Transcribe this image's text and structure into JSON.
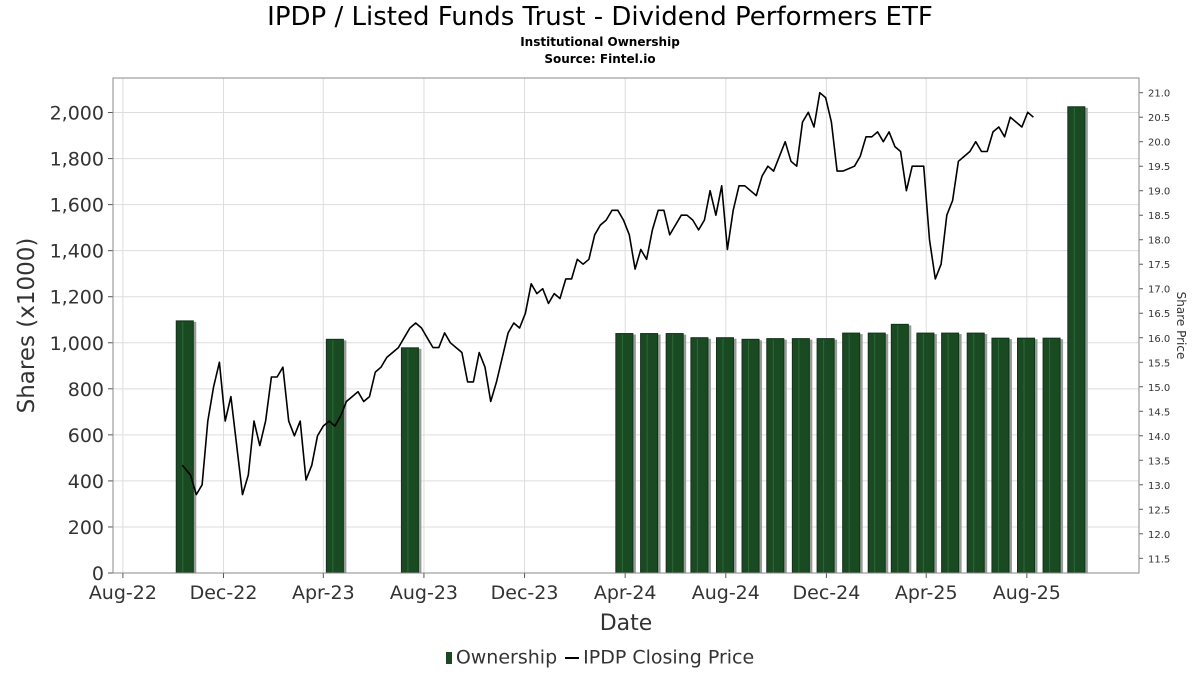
{
  "header": {
    "title": "IPDP / Listed Funds Trust - Dividend Performers ETF",
    "subtitle": "Institutional Ownership",
    "source": "Source: Fintel.io"
  },
  "legend": {
    "ownership_label": "Ownership",
    "price_label": "IPDP Closing Price"
  },
  "colors": {
    "bar": "#1a4a22",
    "bar_shadow": "#999999",
    "line": "#000000",
    "grid": "#dddddd"
  },
  "chart_data": {
    "type": "bar",
    "xlabel": "Date",
    "ylabel": "Shares (x1000)",
    "y2label": "Share Price",
    "x_ticks": [
      "Aug-22",
      "Dec-22",
      "Apr-23",
      "Aug-23",
      "Dec-23",
      "Apr-24",
      "Aug-24",
      "Dec-24",
      "Apr-25",
      "Aug-25"
    ],
    "ylim": [
      0,
      2150
    ],
    "y_ticks": [
      0,
      200,
      400,
      600,
      800,
      1000,
      1200,
      1400,
      1600,
      1800,
      2000
    ],
    "y_tick_labels": [
      "0",
      "200",
      "400",
      "600",
      "800",
      "1,000",
      "1,200",
      "1,400",
      "1,600",
      "1,800",
      "2,000"
    ],
    "y2lim": [
      11.2,
      21.3
    ],
    "y2_ticks": [
      "11.5",
      "12.0",
      "12.5",
      "13.0",
      "13.5",
      "14.0",
      "14.5",
      "15.0",
      "15.5",
      "16.0",
      "16.5",
      "17.0",
      "17.5",
      "18.0",
      "18.5",
      "19.0",
      "19.5",
      "20.0",
      "20.5",
      "21.0"
    ],
    "grid": true,
    "legend_position": "bottom",
    "series": [
      {
        "name": "Ownership",
        "kind": "bar",
        "points": [
          [
            "2022-10-15",
            1095
          ],
          [
            "2023-04-15",
            1015
          ],
          [
            "2023-07-15",
            978
          ],
          [
            "2024-03-31",
            1040
          ],
          [
            "2024-04-30",
            1040
          ],
          [
            "2024-05-31",
            1040
          ],
          [
            "2024-06-30",
            1022
          ],
          [
            "2024-07-31",
            1022
          ],
          [
            "2024-08-31",
            1015
          ],
          [
            "2024-09-30",
            1018
          ],
          [
            "2024-10-31",
            1018
          ],
          [
            "2024-11-30",
            1018
          ],
          [
            "2024-12-31",
            1042
          ],
          [
            "2025-01-31",
            1042
          ],
          [
            "2025-02-28",
            1080
          ],
          [
            "2025-03-31",
            1042
          ],
          [
            "2025-04-30",
            1042
          ],
          [
            "2025-05-31",
            1042
          ],
          [
            "2025-06-30",
            1020
          ],
          [
            "2025-07-31",
            1020
          ],
          [
            "2025-08-31",
            1020
          ],
          [
            "2025-09-30",
            2025
          ]
        ]
      },
      {
        "name": "IPDP Closing Price",
        "kind": "line",
        "points": [
          [
            "2022-10-12",
            13.4
          ],
          [
            "2022-10-22",
            13.2
          ],
          [
            "2022-10-29",
            12.8
          ],
          [
            "2022-11-05",
            13.0
          ],
          [
            "2022-11-12",
            14.3
          ],
          [
            "2022-11-19",
            15.0
          ],
          [
            "2022-11-26",
            15.5
          ],
          [
            "2022-12-03",
            14.3
          ],
          [
            "2022-12-10",
            14.8
          ],
          [
            "2022-12-17",
            13.8
          ],
          [
            "2022-12-24",
            12.8
          ],
          [
            "2022-12-31",
            13.2
          ],
          [
            "2023-01-07",
            14.3
          ],
          [
            "2023-01-14",
            13.8
          ],
          [
            "2023-01-21",
            14.3
          ],
          [
            "2023-01-28",
            15.2
          ],
          [
            "2023-02-04",
            15.2
          ],
          [
            "2023-02-11",
            15.4
          ],
          [
            "2023-02-18",
            14.3
          ],
          [
            "2023-02-25",
            14.0
          ],
          [
            "2023-03-04",
            14.3
          ],
          [
            "2023-03-11",
            13.1
          ],
          [
            "2023-03-18",
            13.4
          ],
          [
            "2023-03-25",
            14.0
          ],
          [
            "2023-04-01",
            14.2
          ],
          [
            "2023-04-08",
            14.3
          ],
          [
            "2023-04-15",
            14.2
          ],
          [
            "2023-04-22",
            14.4
          ],
          [
            "2023-04-29",
            14.7
          ],
          [
            "2023-05-06",
            14.8
          ],
          [
            "2023-05-13",
            14.9
          ],
          [
            "2023-05-20",
            14.7
          ],
          [
            "2023-05-27",
            14.8
          ],
          [
            "2023-06-03",
            15.3
          ],
          [
            "2023-06-10",
            15.4
          ],
          [
            "2023-06-17",
            15.6
          ],
          [
            "2023-06-24",
            15.7
          ],
          [
            "2023-07-01",
            15.8
          ],
          [
            "2023-07-08",
            16.0
          ],
          [
            "2023-07-15",
            16.2
          ],
          [
            "2023-07-22",
            16.3
          ],
          [
            "2023-07-29",
            16.2
          ],
          [
            "2023-08-05",
            16.0
          ],
          [
            "2023-08-12",
            15.8
          ],
          [
            "2023-08-19",
            15.8
          ],
          [
            "2023-08-26",
            16.1
          ],
          [
            "2023-09-02",
            15.9
          ],
          [
            "2023-09-09",
            15.8
          ],
          [
            "2023-09-16",
            15.7
          ],
          [
            "2023-09-23",
            15.1
          ],
          [
            "2023-09-30",
            15.1
          ],
          [
            "2023-10-07",
            15.7
          ],
          [
            "2023-10-14",
            15.4
          ],
          [
            "2023-10-21",
            14.7
          ],
          [
            "2023-10-28",
            15.1
          ],
          [
            "2023-11-04",
            15.6
          ],
          [
            "2023-11-11",
            16.1
          ],
          [
            "2023-11-18",
            16.3
          ],
          [
            "2023-11-25",
            16.2
          ],
          [
            "2023-12-02",
            16.5
          ],
          [
            "2023-12-09",
            17.1
          ],
          [
            "2023-12-16",
            16.9
          ],
          [
            "2023-12-23",
            17.0
          ],
          [
            "2023-12-30",
            16.7
          ],
          [
            "2024-01-06",
            16.9
          ],
          [
            "2024-01-13",
            16.8
          ],
          [
            "2024-01-20",
            17.2
          ],
          [
            "2024-01-27",
            17.2
          ],
          [
            "2024-02-03",
            17.6
          ],
          [
            "2024-02-10",
            17.5
          ],
          [
            "2024-02-17",
            17.6
          ],
          [
            "2024-02-24",
            18.1
          ],
          [
            "2024-03-02",
            18.3
          ],
          [
            "2024-03-09",
            18.4
          ],
          [
            "2024-03-16",
            18.6
          ],
          [
            "2024-03-23",
            18.6
          ],
          [
            "2024-03-30",
            18.4
          ],
          [
            "2024-04-06",
            18.1
          ],
          [
            "2024-04-13",
            17.4
          ],
          [
            "2024-04-20",
            17.8
          ],
          [
            "2024-04-27",
            17.6
          ],
          [
            "2024-05-04",
            18.2
          ],
          [
            "2024-05-11",
            18.6
          ],
          [
            "2024-05-18",
            18.6
          ],
          [
            "2024-05-25",
            18.1
          ],
          [
            "2024-06-01",
            18.3
          ],
          [
            "2024-06-08",
            18.5
          ],
          [
            "2024-06-15",
            18.5
          ],
          [
            "2024-06-22",
            18.4
          ],
          [
            "2024-06-29",
            18.2
          ],
          [
            "2024-07-06",
            18.4
          ],
          [
            "2024-07-13",
            19.0
          ],
          [
            "2024-07-20",
            18.5
          ],
          [
            "2024-07-27",
            19.1
          ],
          [
            "2024-08-03",
            17.8
          ],
          [
            "2024-08-10",
            18.6
          ],
          [
            "2024-08-17",
            19.1
          ],
          [
            "2024-08-24",
            19.1
          ],
          [
            "2024-08-31",
            19.0
          ],
          [
            "2024-09-07",
            18.9
          ],
          [
            "2024-09-14",
            19.3
          ],
          [
            "2024-09-21",
            19.5
          ],
          [
            "2024-09-28",
            19.4
          ],
          [
            "2024-10-05",
            19.7
          ],
          [
            "2024-10-12",
            20.0
          ],
          [
            "2024-10-19",
            19.6
          ],
          [
            "2024-10-26",
            19.5
          ],
          [
            "2024-11-02",
            20.4
          ],
          [
            "2024-11-09",
            20.6
          ],
          [
            "2024-11-16",
            20.3
          ],
          [
            "2024-11-23",
            21.0
          ],
          [
            "2024-11-30",
            20.9
          ],
          [
            "2024-12-07",
            20.4
          ],
          [
            "2024-12-14",
            19.4
          ],
          [
            "2024-12-21",
            19.4
          ],
          [
            "2025-01-04",
            19.5
          ],
          [
            "2025-01-11",
            19.7
          ],
          [
            "2025-01-18",
            20.1
          ],
          [
            "2025-01-25",
            20.1
          ],
          [
            "2025-02-01",
            20.2
          ],
          [
            "2025-02-08",
            20.0
          ],
          [
            "2025-02-15",
            20.2
          ],
          [
            "2025-02-22",
            19.9
          ],
          [
            "2025-03-01",
            19.8
          ],
          [
            "2025-03-08",
            19.0
          ],
          [
            "2025-03-15",
            19.5
          ],
          [
            "2025-03-22",
            19.5
          ],
          [
            "2025-03-29",
            19.5
          ],
          [
            "2025-04-05",
            18.0
          ],
          [
            "2025-04-12",
            17.2
          ],
          [
            "2025-04-19",
            17.5
          ],
          [
            "2025-04-26",
            18.5
          ],
          [
            "2025-05-03",
            18.8
          ],
          [
            "2025-05-10",
            19.6
          ],
          [
            "2025-05-17",
            19.7
          ],
          [
            "2025-05-24",
            19.8
          ],
          [
            "2025-05-31",
            20.0
          ],
          [
            "2025-06-07",
            19.8
          ],
          [
            "2025-06-14",
            19.8
          ],
          [
            "2025-06-21",
            20.2
          ],
          [
            "2025-06-28",
            20.3
          ],
          [
            "2025-07-05",
            20.1
          ],
          [
            "2025-07-12",
            20.5
          ],
          [
            "2025-07-19",
            20.4
          ],
          [
            "2025-07-26",
            20.3
          ],
          [
            "2025-08-02",
            20.6
          ],
          [
            "2025-08-09",
            20.5
          ]
        ]
      }
    ]
  }
}
